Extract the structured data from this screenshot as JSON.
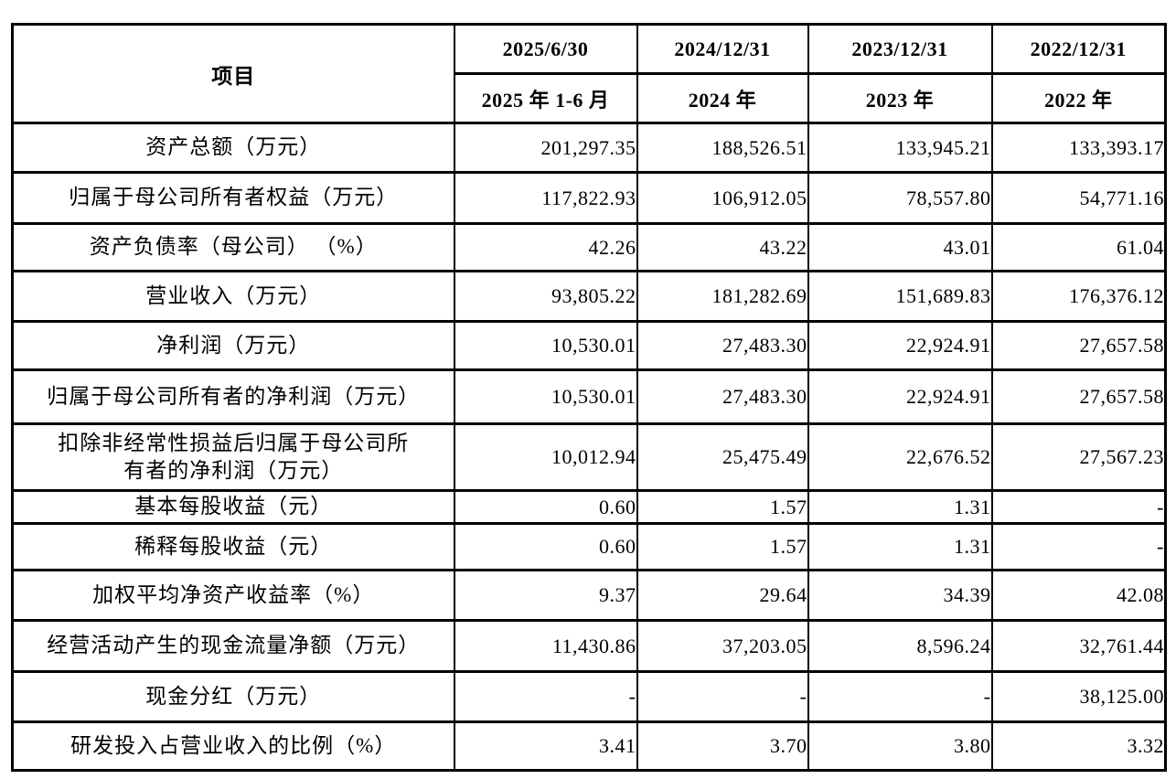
{
  "table": {
    "corner_header": "项目",
    "date_headers": [
      "2025/6/30",
      "2024/12/31",
      "2023/12/31",
      "2022/12/31"
    ],
    "period_headers": [
      "2025 年 1-6 月",
      "2024 年",
      "2023 年",
      "2022 年"
    ],
    "rows": [
      {
        "label": "资产总额（万元）",
        "values": [
          "201,297.35",
          "188,526.51",
          "133,945.21",
          "133,393.17"
        ]
      },
      {
        "label": "归属于母公司所有者权益（万元）",
        "values": [
          "117,822.93",
          "106,912.05",
          "78,557.80",
          "54,771.16"
        ]
      },
      {
        "label": "资产负债率（母公司） （%）",
        "values": [
          "42.26",
          "43.22",
          "43.01",
          "61.04"
        ]
      },
      {
        "label": "营业收入（万元）",
        "values": [
          "93,805.22",
          "181,282.69",
          "151,689.83",
          "176,376.12"
        ]
      },
      {
        "label": "净利润（万元）",
        "values": [
          "10,530.01",
          "27,483.30",
          "22,924.91",
          "27,657.58"
        ]
      },
      {
        "label": "归属于母公司所有者的净利润（万元）",
        "values": [
          "10,530.01",
          "27,483.30",
          "22,924.91",
          "27,657.58"
        ]
      },
      {
        "label": "扣除非经常性损益后归属于母公司所\n有者的净利润（万元）",
        "values": [
          "10,012.94",
          "25,475.49",
          "22,676.52",
          "27,567.23"
        ]
      },
      {
        "label": "基本每股收益（元）",
        "values": [
          "0.60",
          "1.57",
          "1.31",
          "-"
        ]
      },
      {
        "label": "稀释每股收益（元）",
        "values": [
          "0.60",
          "1.57",
          "1.31",
          "-"
        ]
      },
      {
        "label": "加权平均净资产收益率（%）",
        "values": [
          "9.37",
          "29.64",
          "34.39",
          "42.08"
        ]
      },
      {
        "label": "经营活动产生的现金流量净额（万元）",
        "values": [
          "11,430.86",
          "37,203.05",
          "8,596.24",
          "32,761.44"
        ]
      },
      {
        "label": "现金分红（万元）",
        "values": [
          "-",
          "-",
          "-",
          "38,125.00"
        ]
      },
      {
        "label": "研发投入占营业收入的比例（%）",
        "values": [
          "3.41",
          "3.70",
          "3.80",
          "3.32"
        ]
      }
    ]
  },
  "colors": {
    "border": "#000000",
    "text": "#000000",
    "background": "#ffffff"
  }
}
